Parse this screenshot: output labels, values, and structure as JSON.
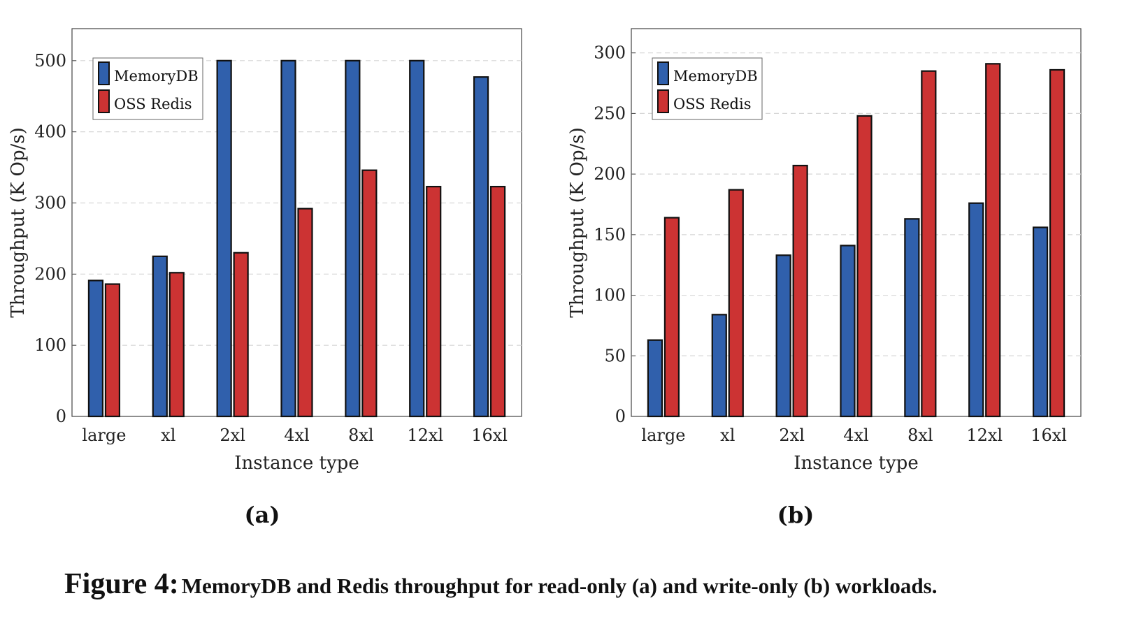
{
  "chart_data": [
    {
      "type": "bar",
      "categories": [
        "large",
        "xl",
        "2xl",
        "4xl",
        "8xl",
        "12xl",
        "16xl"
      ],
      "series": [
        {
          "name": "MemoryDB",
          "color": "#3060ac",
          "values": [
            191,
            225,
            500,
            500,
            500,
            500,
            477
          ]
        },
        {
          "name": "OSS Redis",
          "color": "#cc3333",
          "values": [
            186,
            202,
            230,
            292,
            346,
            323,
            323
          ]
        }
      ],
      "xlabel": "Instance type",
      "ylabel": "Throughput (K Op/s)",
      "ylim": [
        0,
        545
      ],
      "yticks": [
        0,
        100,
        200,
        300,
        400,
        500
      ],
      "grid": true,
      "legend_position": "top-left",
      "panel_label": "(a)"
    },
    {
      "type": "bar",
      "categories": [
        "large",
        "xl",
        "2xl",
        "4xl",
        "8xl",
        "12xl",
        "16xl"
      ],
      "series": [
        {
          "name": "MemoryDB",
          "color": "#3060ac",
          "values": [
            63,
            84,
            133,
            141,
            163,
            176,
            156
          ]
        },
        {
          "name": "OSS Redis",
          "color": "#cc3333",
          "values": [
            164,
            187,
            207,
            248,
            285,
            291,
            286
          ]
        }
      ],
      "xlabel": "Instance type",
      "ylabel": "Throughput (K Op/s)",
      "ylim": [
        0,
        320
      ],
      "yticks": [
        0,
        50,
        100,
        150,
        200,
        250,
        300
      ],
      "grid": true,
      "legend_position": "top-left",
      "panel_label": "(b)"
    }
  ],
  "caption": {
    "number": "Figure 4:",
    "text": "MemoryDB and Redis throughput for read-only (a) and write-only (b) workloads."
  }
}
